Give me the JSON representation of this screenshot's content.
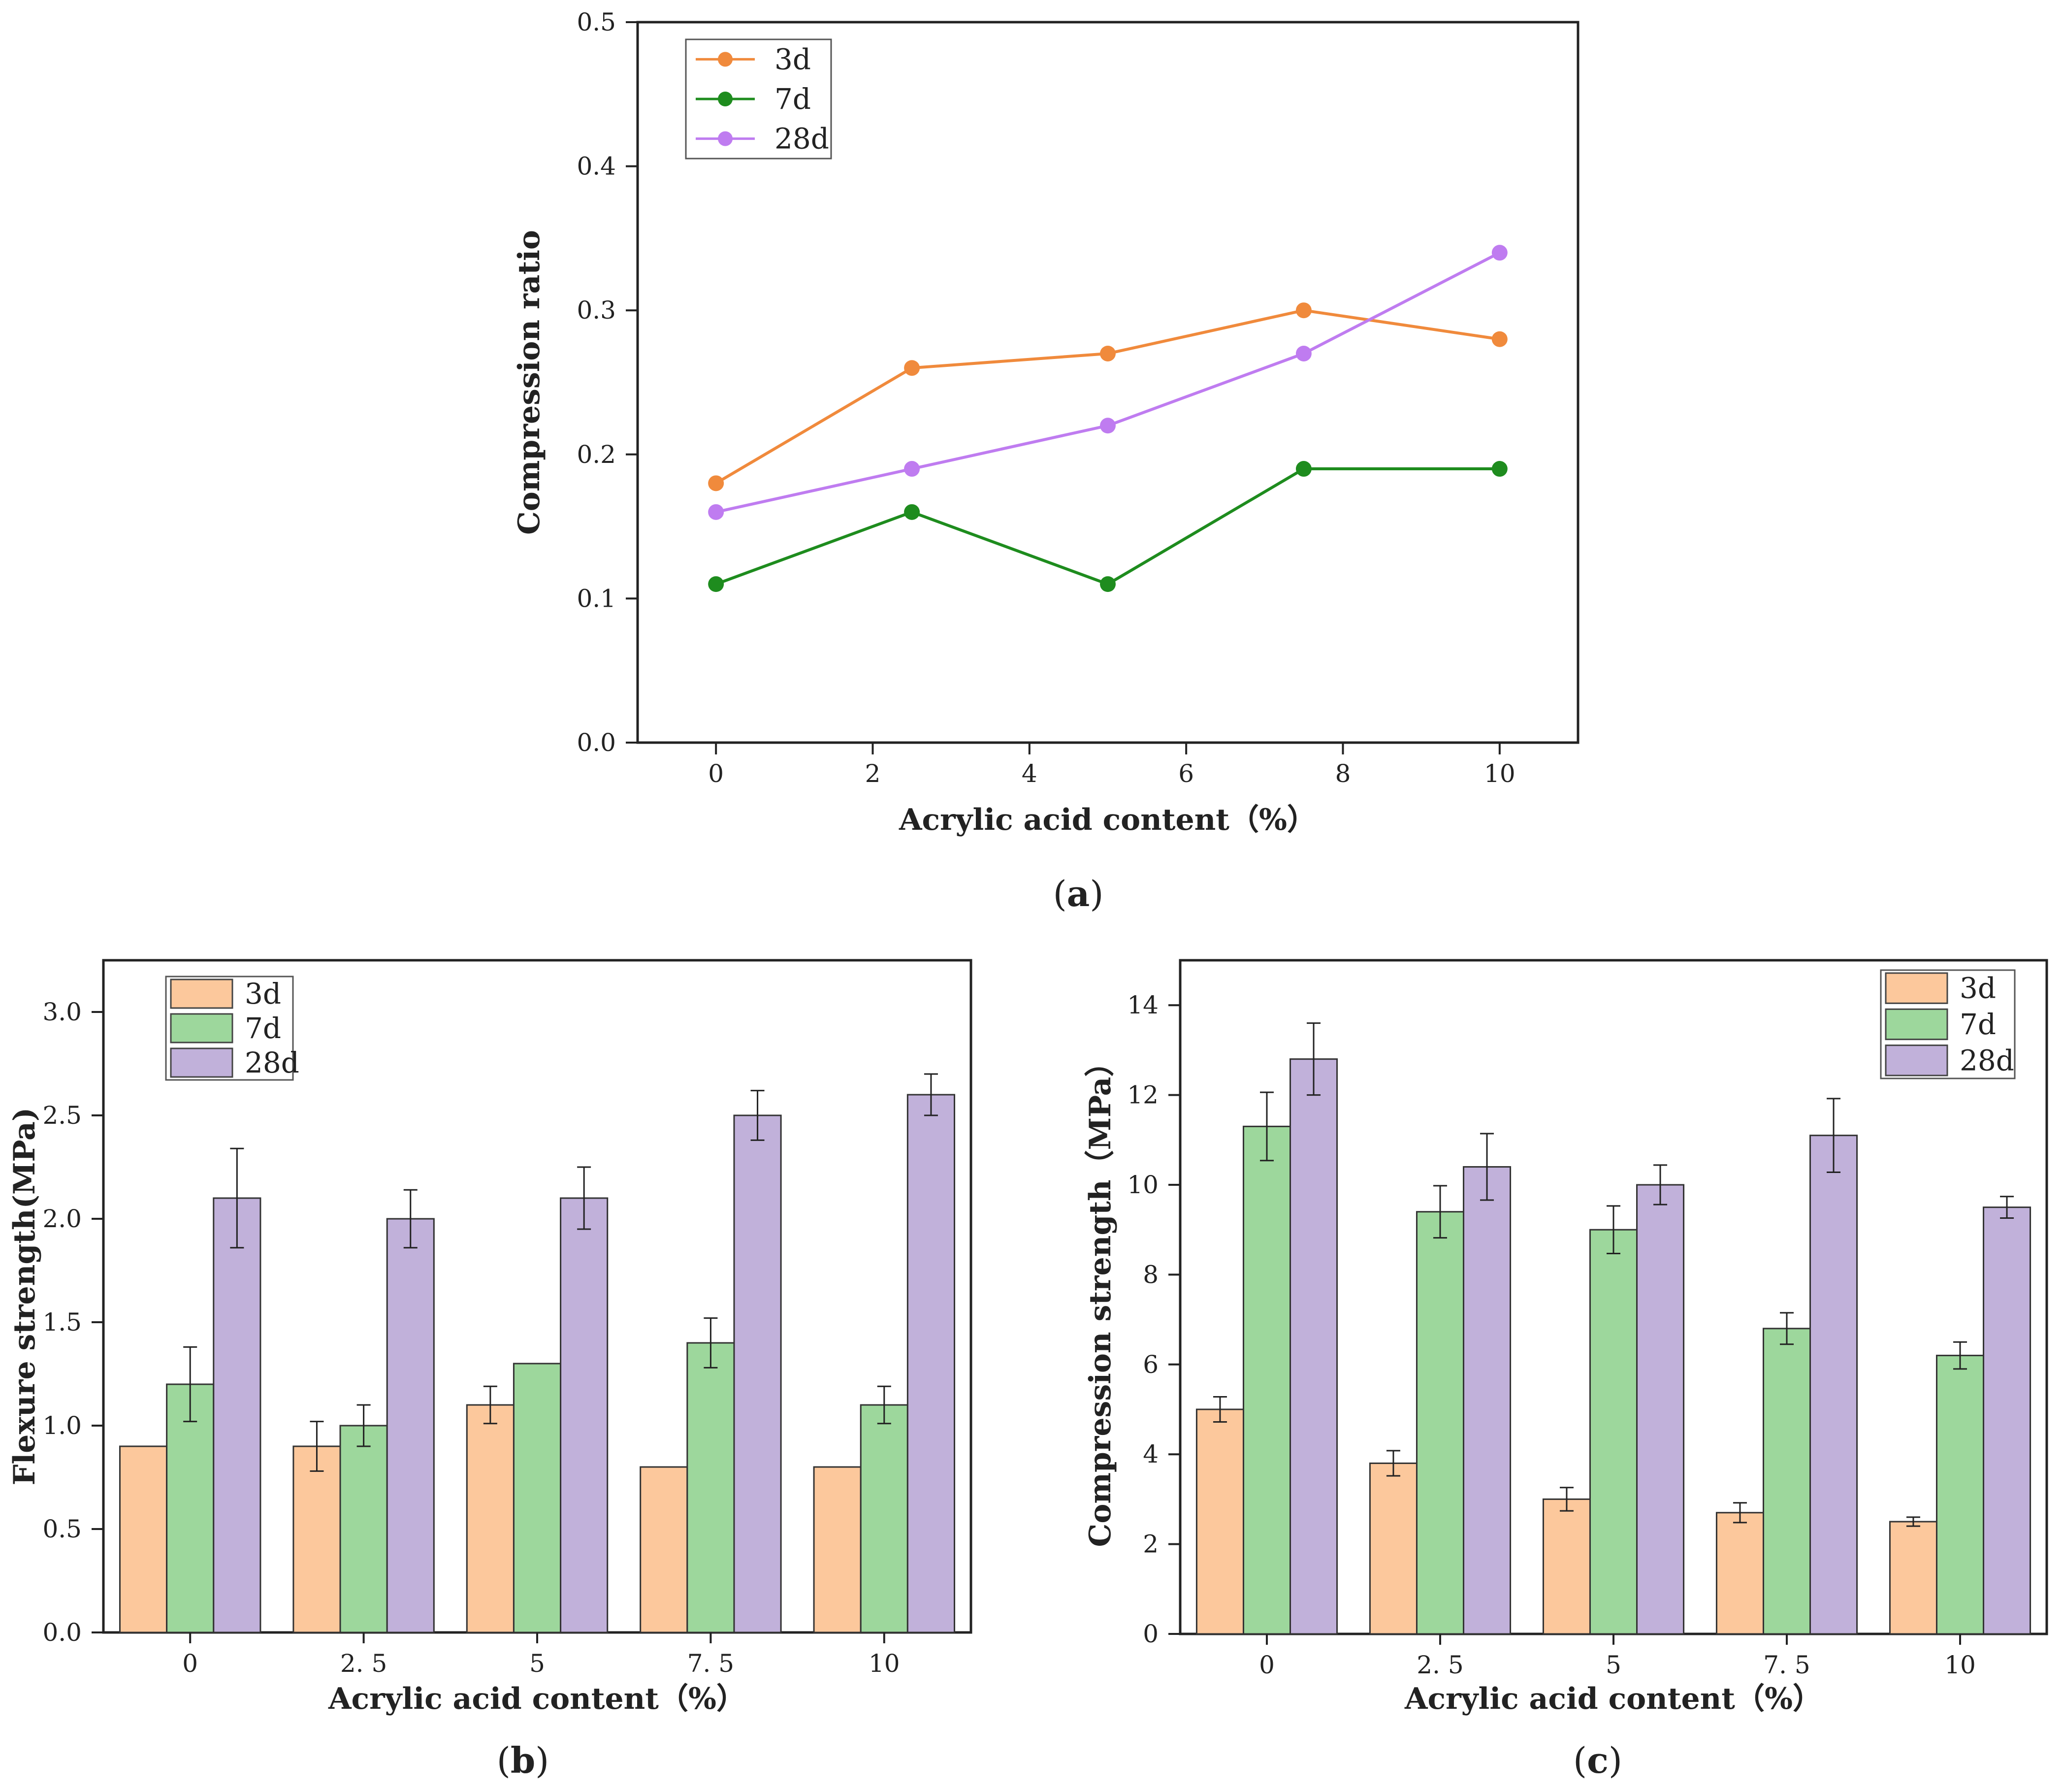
{
  "figure": {
    "panels": [
      {
        "id": "a",
        "label_open": "(",
        "label_letter": "a",
        "label_close": ")"
      },
      {
        "id": "b",
        "label_open": "(",
        "label_letter": "b",
        "label_close": ")"
      },
      {
        "id": "c",
        "label_open": "(",
        "label_letter": "c",
        "label_close": ")"
      }
    ]
  },
  "chart_data": [
    {
      "id": "a",
      "type": "line",
      "title": "",
      "xlabel": "Acrylic acid content（%）",
      "ylabel": "Compression ratio",
      "xlim": [
        -1,
        11
      ],
      "ylim": [
        0,
        0.5
      ],
      "xticks": [
        0,
        2,
        4,
        6,
        8,
        10
      ],
      "xtick_labels": [
        "0",
        "2",
        "4",
        "6",
        "8",
        "10"
      ],
      "yticks": [
        0,
        0.1,
        0.2,
        0.3,
        0.4,
        0.5
      ],
      "ytick_labels": [
        "0.0",
        "0.1",
        "0.2",
        "0.3",
        "0.4",
        "0.5"
      ],
      "x": [
        0,
        2.5,
        5,
        7.5,
        10
      ],
      "legend_position": "top-left",
      "series": [
        {
          "name": "3d",
          "color": "#F08A3C",
          "values": [
            0.18,
            0.26,
            0.27,
            0.3,
            0.28
          ]
        },
        {
          "name": "7d",
          "color": "#1E8C1E",
          "values": [
            0.11,
            0.16,
            0.11,
            0.19,
            0.19
          ]
        },
        {
          "name": "28d",
          "color": "#BF7CF0",
          "values": [
            0.16,
            0.19,
            0.22,
            0.27,
            0.34
          ]
        }
      ]
    },
    {
      "id": "b",
      "type": "bar",
      "title": "",
      "xlabel": "Acrylic acid content（%）",
      "ylabel": "Flexure strength(MPa)",
      "ylim": [
        0,
        3.25
      ],
      "yticks": [
        0,
        0.5,
        1.0,
        1.5,
        2.0,
        2.5,
        3.0
      ],
      "ytick_labels": [
        "0.0",
        "0.5",
        "1.0",
        "1.5",
        "2.0",
        "2.5",
        "3.0"
      ],
      "categories": [
        "0",
        "2. 5",
        "5",
        "7. 5",
        "10"
      ],
      "legend_position": "top-left",
      "series": [
        {
          "name": "3d",
          "color": "#FCC89C",
          "values": [
            0.9,
            0.9,
            1.1,
            0.8,
            0.8
          ],
          "errors": [
            0,
            0.12,
            0.09,
            0,
            0
          ]
        },
        {
          "name": "7d",
          "color": "#9DD79C",
          "values": [
            1.2,
            1.0,
            1.3,
            1.4,
            1.1
          ],
          "errors": [
            0.18,
            0.1,
            0,
            0.12,
            0.09
          ]
        },
        {
          "name": "28d",
          "color": "#C1B1DA",
          "values": [
            2.1,
            2.0,
            2.1,
            2.5,
            2.6
          ],
          "errors": [
            0.24,
            0.14,
            0.15,
            0.12,
            0.1
          ]
        }
      ]
    },
    {
      "id": "c",
      "type": "bar",
      "title": "",
      "xlabel": "Acrylic acid content（%）",
      "ylabel": "Compression strength（MPa）",
      "ylim": [
        0,
        15
      ],
      "yticks": [
        0,
        2,
        4,
        6,
        8,
        10,
        12,
        14
      ],
      "ytick_labels": [
        "0",
        "2",
        "4",
        "6",
        "8",
        "10",
        "12",
        "14"
      ],
      "categories": [
        "0",
        "2. 5",
        "5",
        "7. 5",
        "10"
      ],
      "legend_position": "top-right",
      "series": [
        {
          "name": "3d",
          "color": "#FCC89C",
          "values": [
            5.0,
            3.8,
            3.0,
            2.7,
            2.5
          ],
          "errors": [
            0.28,
            0.28,
            0.26,
            0.22,
            0.1
          ]
        },
        {
          "name": "7d",
          "color": "#9DD79C",
          "values": [
            11.3,
            9.4,
            9.0,
            6.8,
            6.2
          ],
          "errors": [
            0.76,
            0.58,
            0.53,
            0.35,
            0.3
          ]
        },
        {
          "name": "28d",
          "color": "#C1B1DA",
          "values": [
            12.8,
            10.4,
            10.0,
            11.1,
            9.5
          ],
          "errors": [
            0.8,
            0.74,
            0.44,
            0.82,
            0.24
          ]
        }
      ]
    }
  ]
}
